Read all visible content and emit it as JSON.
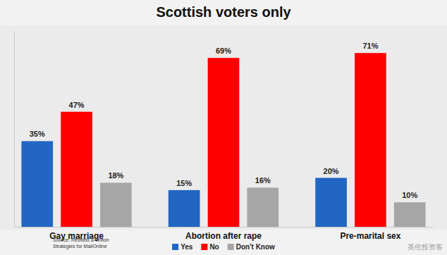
{
  "chart_data": {
    "type": "bar",
    "title": "Scottish voters only",
    "categories": [
      "Gay marriage",
      "Abortion after rape",
      "Pre-marital sex"
    ],
    "series": [
      {
        "name": "Yes",
        "color": "#2166c2",
        "values": [
          35,
          15,
          20
        ],
        "value_labels": [
          "35%",
          "15%",
          "20%"
        ]
      },
      {
        "name": "No",
        "color": "#ff0000",
        "values": [
          47,
          69,
          71
        ],
        "value_labels": [
          "47%",
          "69%",
          "71%"
        ]
      },
      {
        "name": "Don't Know",
        "color": "#a6a6a6",
        "values": [
          18,
          16,
          10
        ],
        "value_labels": [
          "18%",
          "16%",
          "10%"
        ]
      }
    ],
    "ylim": [
      0,
      80
    ],
    "data_labels": true,
    "tick_labels": "x",
    "grid": false,
    "legend": "bottom",
    "annotations": [
      "Source: Redfield & Wilton",
      "Strategies for MailOnline",
      "英伦投资客"
    ]
  }
}
